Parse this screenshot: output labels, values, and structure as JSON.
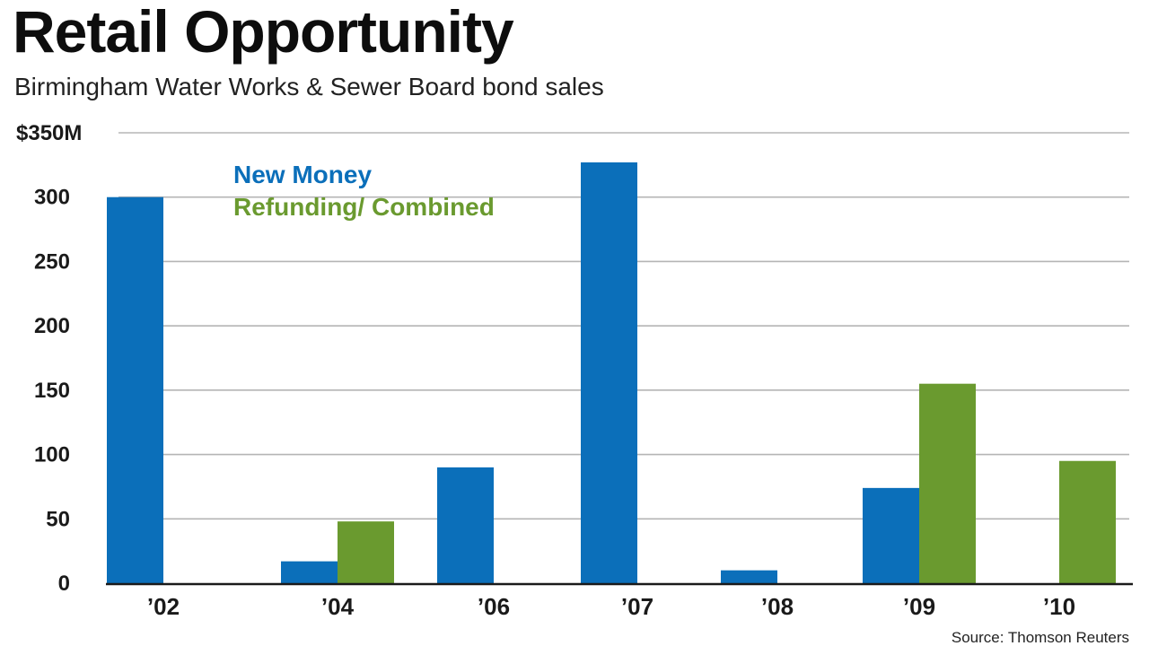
{
  "chart_data": {
    "type": "bar",
    "title": "Retail Opportunity",
    "subtitle": "Birmingham Water Works & Sewer Board bond sales",
    "xlabel": "",
    "ylabel": "",
    "ylim": [
      0,
      350
    ],
    "yticks": [
      0,
      50,
      100,
      150,
      200,
      250,
      300,
      350
    ],
    "ytick_labels": [
      "0",
      "50",
      "100",
      "150",
      "200",
      "250",
      "300",
      "$350M"
    ],
    "grid": true,
    "categories": [
      "’02",
      "’04",
      "’06",
      "’07",
      "’08",
      "’09",
      "’10"
    ],
    "series": [
      {
        "name": "New Money",
        "color": "#0b6fba",
        "values": [
          300,
          17,
          90,
          327,
          10,
          74,
          0
        ]
      },
      {
        "name": "Refunding/ Combined",
        "color": "#6a9a2f",
        "values": [
          0,
          48,
          0,
          0,
          0,
          155,
          95
        ]
      }
    ],
    "legend_position": "top-left",
    "source": "Source: Thomson Reuters"
  }
}
